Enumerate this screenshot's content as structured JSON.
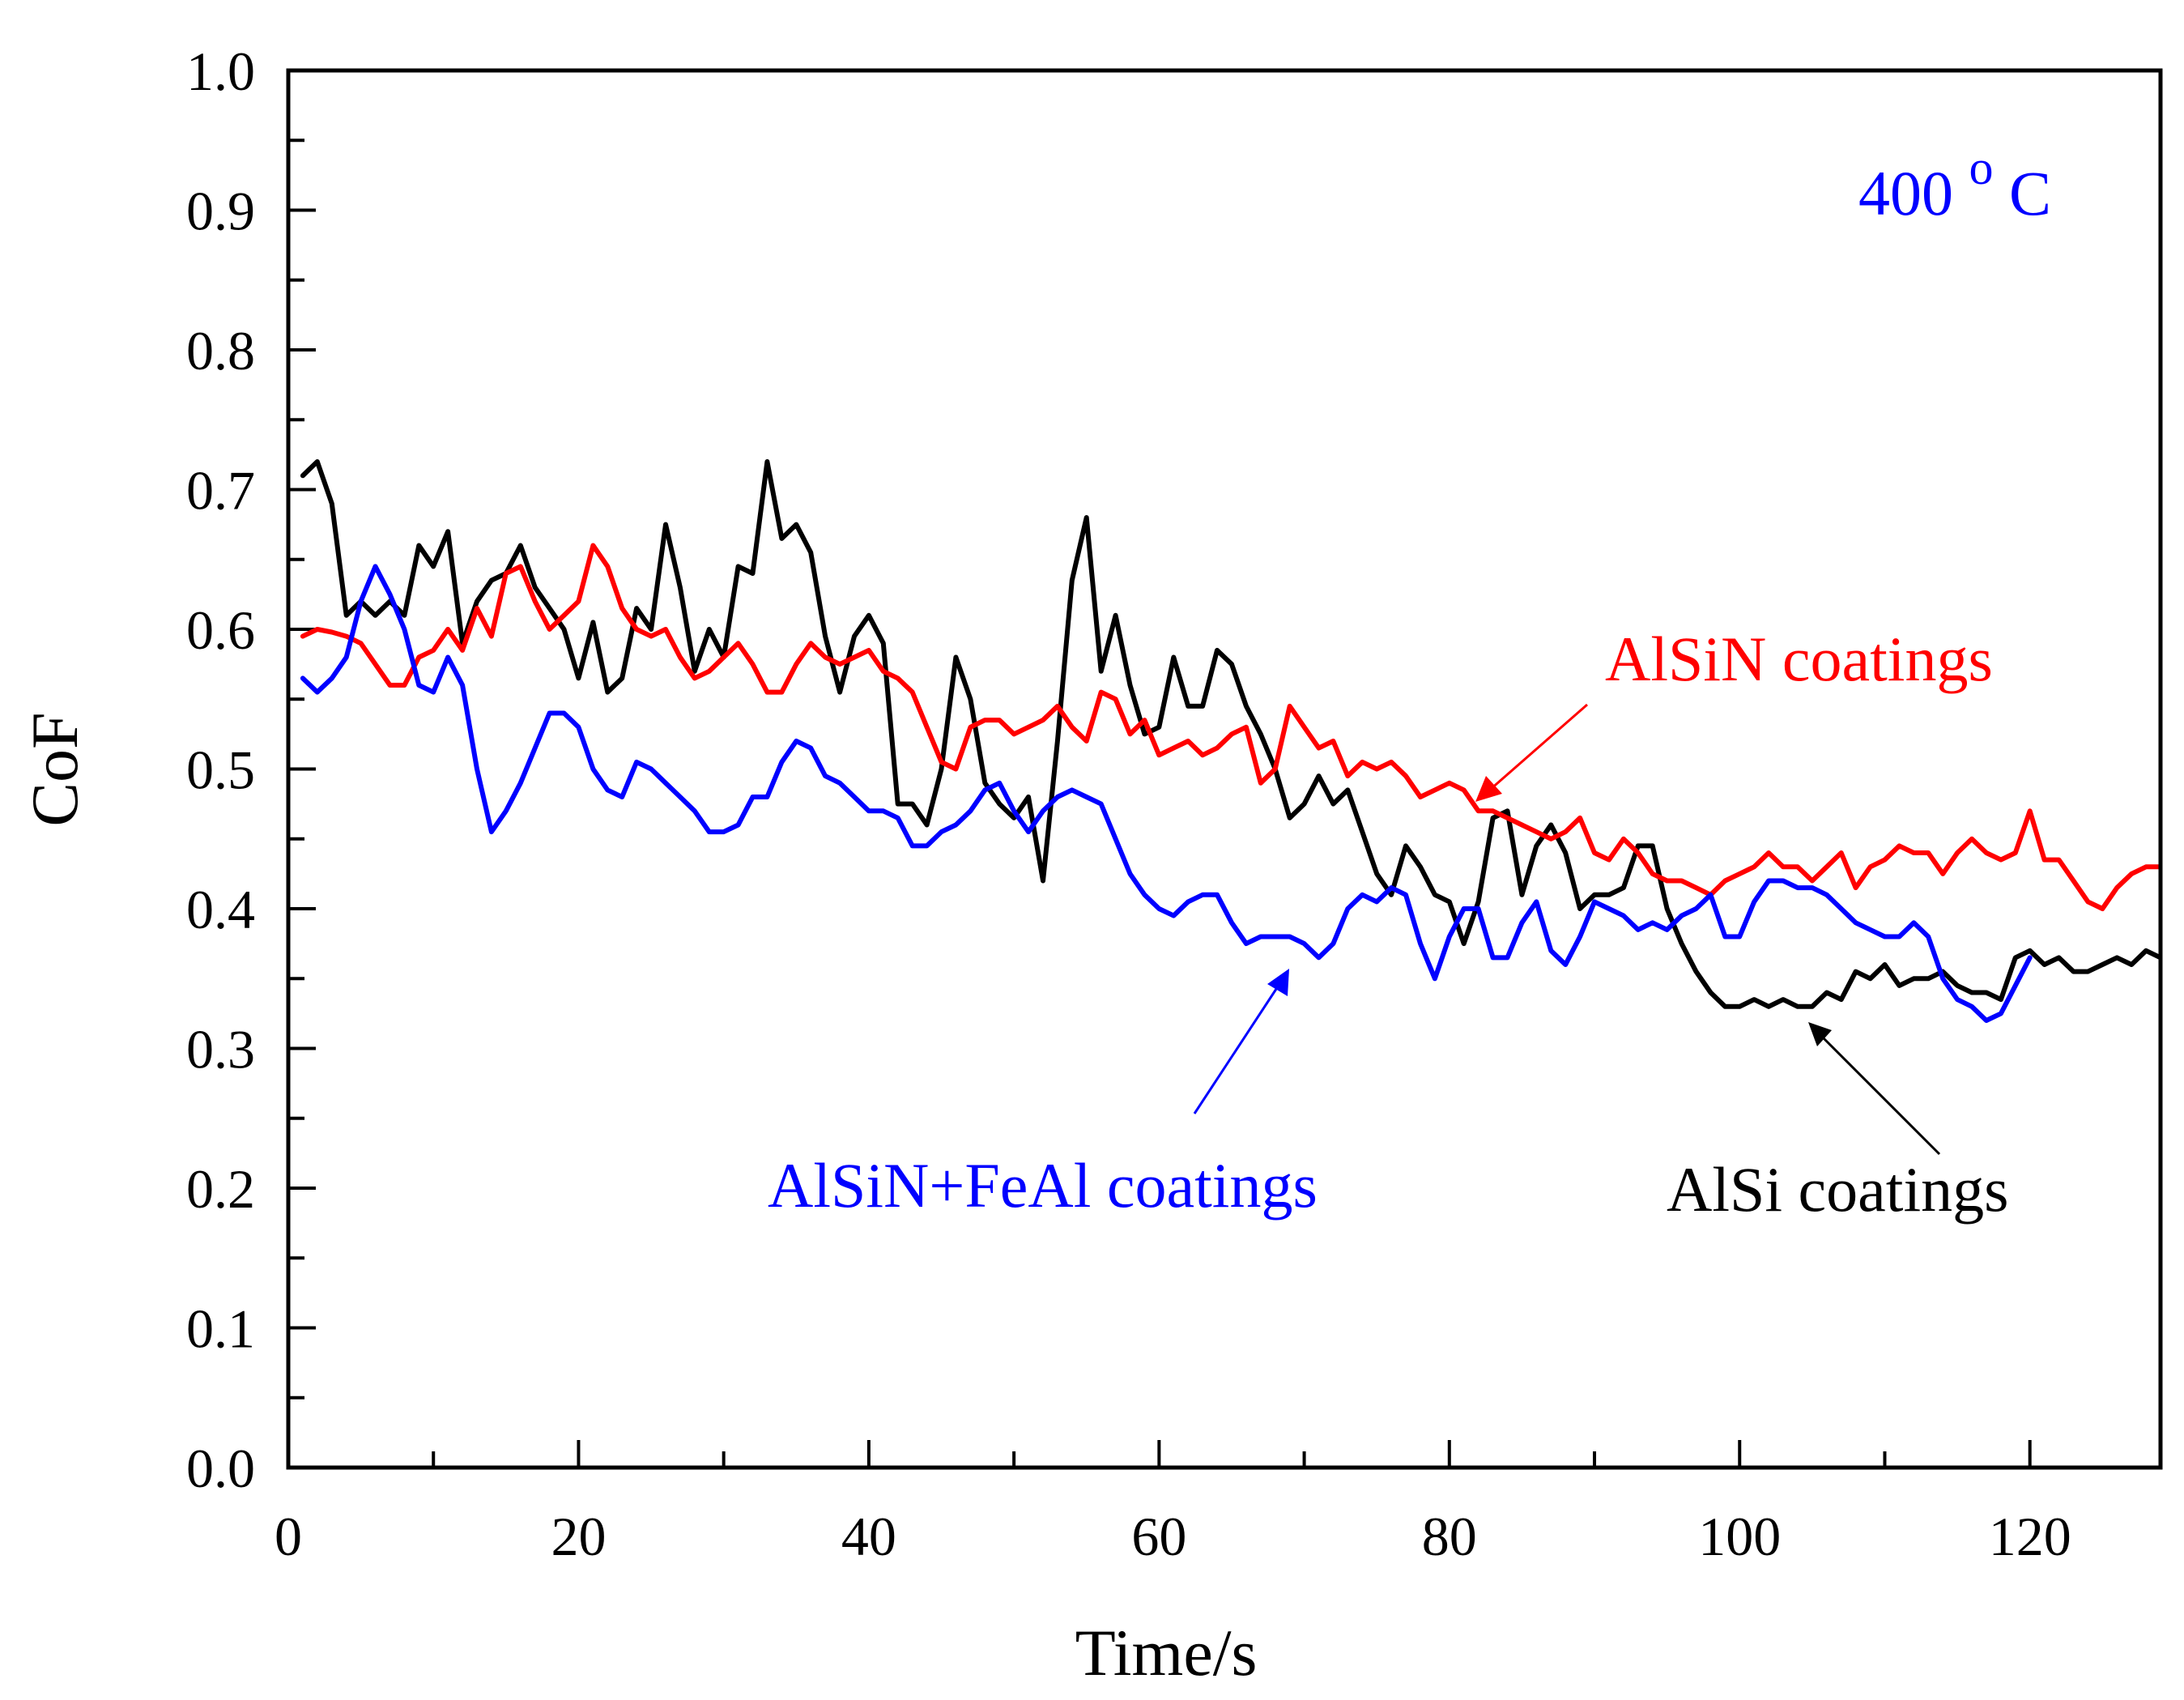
{
  "chart_data": {
    "type": "line",
    "xlabel": "Time/s",
    "ylabel": "CoF",
    "xlim": [
      0,
      129
    ],
    "ylim": [
      0.0,
      1.0
    ],
    "x_ticks": [
      0,
      20,
      40,
      60,
      80,
      100,
      120
    ],
    "y_ticks": [
      "0.0",
      "0.1",
      "0.2",
      "0.3",
      "0.4",
      "0.5",
      "0.6",
      "0.7",
      "0.8",
      "0.9",
      "1.0"
    ],
    "temperature_label": {
      "main": "400",
      "superscript": "o",
      "unit": "C"
    },
    "series": [
      {
        "name": "AlSi coatings",
        "color": "#000000",
        "x": [
          1,
          2,
          3,
          4,
          5,
          6,
          7,
          8,
          9,
          10,
          11,
          12,
          13,
          14,
          15,
          16,
          17,
          18,
          19,
          20,
          21,
          22,
          23,
          24,
          25,
          26,
          27,
          28,
          29,
          30,
          31,
          32,
          33,
          34,
          35,
          36,
          37,
          38,
          39,
          40,
          41,
          42,
          43,
          44,
          45,
          46,
          47,
          48,
          49,
          50,
          51,
          52,
          53,
          54,
          55,
          56,
          57,
          58,
          59,
          60,
          61,
          62,
          63,
          64,
          65,
          66,
          67,
          68,
          69,
          70,
          71,
          72,
          73,
          74,
          75,
          76,
          77,
          78,
          79,
          80,
          81,
          82,
          83,
          84,
          85,
          86,
          87,
          88,
          89,
          90,
          91,
          92,
          93,
          94,
          95,
          96,
          97,
          98,
          99,
          100,
          101,
          102,
          103,
          104,
          105,
          106,
          107,
          108,
          109,
          110,
          111,
          112,
          113,
          114,
          115,
          116,
          117,
          118,
          119,
          120,
          121,
          122,
          123,
          124,
          125,
          126,
          127,
          128,
          129
        ],
        "values": [
          0.71,
          0.72,
          0.69,
          0.61,
          0.62,
          0.61,
          0.62,
          0.61,
          0.66,
          0.645,
          0.67,
          0.59,
          0.62,
          0.635,
          0.64,
          0.66,
          0.63,
          0.615,
          0.6,
          0.565,
          0.605,
          0.555,
          0.565,
          0.615,
          0.6,
          0.675,
          0.63,
          0.57,
          0.6,
          0.58,
          0.645,
          0.64,
          0.72,
          0.665,
          0.675,
          0.655,
          0.595,
          0.555,
          0.595,
          0.61,
          0.59,
          0.475,
          0.475,
          0.46,
          0.5,
          0.58,
          0.55,
          0.49,
          0.475,
          0.465,
          0.48,
          0.42,
          0.52,
          0.635,
          0.68,
          0.57,
          0.61,
          0.56,
          0.525,
          0.53,
          0.58,
          0.545,
          0.545,
          0.585,
          0.575,
          0.545,
          0.525,
          0.5,
          0.465,
          0.475,
          0.495,
          0.475,
          0.485,
          0.455,
          0.425,
          0.41,
          0.445,
          0.43,
          0.41,
          0.405,
          0.375,
          0.405,
          0.465,
          0.47,
          0.41,
          0.445,
          0.46,
          0.44,
          0.4,
          0.41,
          0.41,
          0.415,
          0.445,
          0.445,
          0.4,
          0.375,
          0.355,
          0.34,
          0.33,
          0.33,
          0.335,
          0.33,
          0.335,
          0.33,
          0.33,
          0.34,
          0.335,
          0.355,
          0.35,
          0.36,
          0.345,
          0.35,
          0.35,
          0.355,
          0.345,
          0.34,
          0.34,
          0.335,
          0.365,
          0.37,
          0.36,
          0.365,
          0.355,
          0.355,
          0.36,
          0.365,
          0.36,
          0.37,
          0.365
        ]
      },
      {
        "name": "AlSiN coatings",
        "color": "#ff0000",
        "x": [
          1,
          2,
          3,
          4,
          5,
          6,
          7,
          8,
          9,
          10,
          11,
          12,
          13,
          14,
          15,
          16,
          17,
          18,
          19,
          20,
          21,
          22,
          23,
          24,
          25,
          26,
          27,
          28,
          29,
          30,
          31,
          32,
          33,
          34,
          35,
          36,
          37,
          38,
          39,
          40,
          41,
          42,
          43,
          44,
          45,
          46,
          47,
          48,
          49,
          50,
          51,
          52,
          53,
          54,
          55,
          56,
          57,
          58,
          59,
          60,
          61,
          62,
          63,
          64,
          65,
          66,
          67,
          68,
          69,
          70,
          71,
          72,
          73,
          74,
          75,
          76,
          77,
          78,
          79,
          80,
          81,
          82,
          83,
          84,
          85,
          86,
          87,
          88,
          89,
          90,
          91,
          92,
          93,
          94,
          95,
          96,
          97,
          98,
          99,
          100,
          101,
          102,
          103,
          104,
          105,
          106,
          107,
          108,
          109,
          110,
          111,
          112,
          113,
          114,
          115,
          116,
          117,
          118,
          119,
          120,
          121,
          122,
          123,
          124,
          125,
          126,
          127,
          128,
          129
        ],
        "values": [
          0.595,
          0.6,
          0.598,
          0.595,
          0.59,
          0.575,
          0.56,
          0.56,
          0.58,
          0.585,
          0.6,
          0.585,
          0.615,
          0.595,
          0.64,
          0.645,
          0.62,
          0.6,
          0.61,
          0.62,
          0.66,
          0.645,
          0.615,
          0.6,
          0.595,
          0.6,
          0.58,
          0.565,
          0.57,
          0.58,
          0.59,
          0.575,
          0.555,
          0.555,
          0.575,
          0.59,
          0.58,
          0.575,
          0.58,
          0.585,
          0.57,
          0.565,
          0.555,
          0.53,
          0.505,
          0.5,
          0.53,
          0.535,
          0.535,
          0.525,
          0.53,
          0.535,
          0.545,
          0.53,
          0.52,
          0.555,
          0.55,
          0.525,
          0.535,
          0.51,
          0.515,
          0.52,
          0.51,
          0.515,
          0.525,
          0.53,
          0.49,
          0.5,
          0.545,
          0.53,
          0.515,
          0.52,
          0.495,
          0.505,
          0.5,
          0.505,
          0.495,
          0.48,
          0.485,
          0.49,
          0.485,
          0.47,
          0.47,
          0.465,
          0.46,
          0.455,
          0.45,
          0.455,
          0.465,
          0.44,
          0.435,
          0.45,
          0.44,
          0.425,
          0.42,
          0.42,
          0.415,
          0.41,
          0.42,
          0.425,
          0.43,
          0.44,
          0.43,
          0.43,
          0.42,
          0.43,
          0.44,
          0.415,
          0.43,
          0.435,
          0.445,
          0.44,
          0.44,
          0.425,
          0.44,
          0.45,
          0.44,
          0.435,
          0.44,
          0.47,
          0.435,
          0.435,
          0.42,
          0.405,
          0.4,
          0.415,
          0.425,
          0.43,
          0.43
        ]
      },
      {
        "name": "AlSiN+FeAl coatings",
        "color": "#0000ff",
        "x": [
          1,
          2,
          3,
          4,
          5,
          6,
          7,
          8,
          9,
          10,
          11,
          12,
          13,
          14,
          15,
          16,
          17,
          18,
          19,
          20,
          21,
          22,
          23,
          24,
          25,
          26,
          27,
          28,
          29,
          30,
          31,
          32,
          33,
          34,
          35,
          36,
          37,
          38,
          39,
          40,
          41,
          42,
          43,
          44,
          45,
          46,
          47,
          48,
          49,
          50,
          51,
          52,
          53,
          54,
          55,
          56,
          57,
          58,
          59,
          60,
          61,
          62,
          63,
          64,
          65,
          66,
          67,
          68,
          69,
          70,
          71,
          72,
          73,
          74,
          75,
          76,
          77,
          78,
          79,
          80,
          81,
          82,
          83,
          84,
          85,
          86,
          87,
          88,
          89,
          90,
          91,
          92,
          93,
          94,
          95,
          96,
          97,
          98,
          99,
          100,
          101,
          102,
          103,
          104,
          105,
          106,
          107,
          108,
          109,
          110,
          111,
          112,
          113,
          114,
          115,
          116,
          117,
          118,
          119,
          120
        ],
        "values": [
          0.565,
          0.555,
          0.565,
          0.58,
          0.62,
          0.645,
          0.625,
          0.6,
          0.56,
          0.555,
          0.58,
          0.56,
          0.5,
          0.455,
          0.47,
          0.49,
          0.515,
          0.54,
          0.54,
          0.53,
          0.5,
          0.485,
          0.48,
          0.505,
          0.5,
          0.49,
          0.48,
          0.47,
          0.455,
          0.455,
          0.46,
          0.48,
          0.48,
          0.505,
          0.52,
          0.515,
          0.495,
          0.49,
          0.48,
          0.47,
          0.47,
          0.465,
          0.445,
          0.445,
          0.455,
          0.46,
          0.47,
          0.485,
          0.49,
          0.47,
          0.455,
          0.47,
          0.48,
          0.485,
          0.48,
          0.475,
          0.45,
          0.425,
          0.41,
          0.4,
          0.395,
          0.405,
          0.41,
          0.41,
          0.39,
          0.375,
          0.38,
          0.38,
          0.38,
          0.375,
          0.365,
          0.375,
          0.4,
          0.41,
          0.405,
          0.415,
          0.41,
          0.375,
          0.35,
          0.38,
          0.4,
          0.4,
          0.365,
          0.365,
          0.39,
          0.405,
          0.37,
          0.36,
          0.38,
          0.405,
          0.4,
          0.395,
          0.385,
          0.39,
          0.385,
          0.395,
          0.4,
          0.41,
          0.38,
          0.38,
          0.405,
          0.42,
          0.42,
          0.415,
          0.415,
          0.41,
          0.4,
          0.39,
          0.385,
          0.38,
          0.38,
          0.39,
          0.38,
          0.35,
          0.335,
          0.33,
          0.32,
          0.325,
          0.345,
          0.365
        ]
      }
    ],
    "annotations": [
      {
        "text": "AlSiN coatings",
        "color": "#ff0000",
        "position": "upper-right"
      },
      {
        "text": "AlSiN+FeAl coatings",
        "color": "#0000ff",
        "position": "lower-middle"
      },
      {
        "text": "AlSi coatings",
        "color": "#000000",
        "position": "lower-right"
      }
    ]
  }
}
